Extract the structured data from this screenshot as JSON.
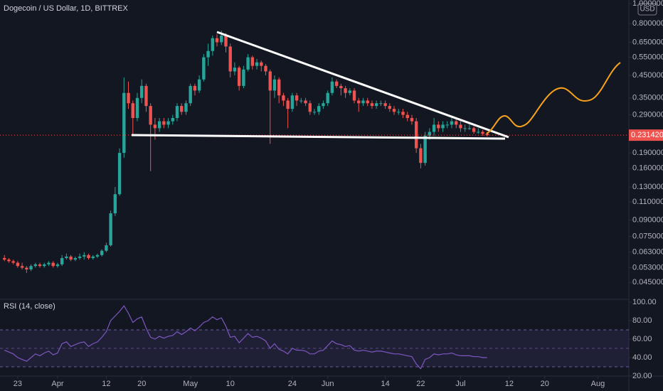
{
  "chart_data": [
    {
      "type": "candlestick",
      "title": "Dogecoin / US Dollar, 1D, BITTREX",
      "currency": "USD",
      "up_color": "#26a69a",
      "down_color": "#ef5350",
      "log_scale": true,
      "x": [
        "03-20",
        "03-21",
        "03-22",
        "03-23",
        "03-24",
        "03-25",
        "03-26",
        "03-27",
        "03-28",
        "03-29",
        "03-30",
        "03-31",
        "04-01",
        "04-02",
        "04-03",
        "04-04",
        "04-05",
        "04-06",
        "04-07",
        "04-08",
        "04-09",
        "04-10",
        "04-11",
        "04-12",
        "04-13",
        "04-14",
        "04-15",
        "04-16",
        "04-17",
        "04-18",
        "04-19",
        "04-20",
        "04-21",
        "04-22",
        "04-23",
        "04-24",
        "04-25",
        "04-26",
        "04-27",
        "04-28",
        "04-29",
        "04-30",
        "05-01",
        "05-02",
        "05-03",
        "05-04",
        "05-05",
        "05-06",
        "05-07",
        "05-08",
        "05-09",
        "05-10",
        "05-11",
        "05-12",
        "05-13",
        "05-14",
        "05-15",
        "05-16",
        "05-17",
        "05-18",
        "05-19",
        "05-20",
        "05-21",
        "05-22",
        "05-23",
        "05-24",
        "05-25",
        "05-26",
        "05-27",
        "05-28",
        "05-29",
        "05-30",
        "05-31",
        "06-01",
        "06-02",
        "06-03",
        "06-04",
        "06-05",
        "06-06",
        "06-07",
        "06-08",
        "06-09",
        "06-10",
        "06-11",
        "06-12",
        "06-13",
        "06-14",
        "06-15",
        "06-16",
        "06-17",
        "06-18",
        "06-19",
        "06-20",
        "06-21",
        "06-22",
        "06-23",
        "06-24",
        "06-25",
        "06-26",
        "06-27",
        "06-28",
        "06-29",
        "06-30",
        "07-01",
        "07-02",
        "07-03",
        "07-04",
        "07-05",
        "07-06",
        "07-07"
      ],
      "open": [
        0.059,
        0.058,
        0.057,
        0.056,
        0.054,
        0.053,
        0.052,
        0.054,
        0.055,
        0.054,
        0.055,
        0.056,
        0.054,
        0.055,
        0.059,
        0.06,
        0.058,
        0.059,
        0.06,
        0.061,
        0.059,
        0.06,
        0.061,
        0.064,
        0.068,
        0.097,
        0.12,
        0.19,
        0.37,
        0.33,
        0.28,
        0.35,
        0.4,
        0.32,
        0.26,
        0.25,
        0.27,
        0.26,
        0.27,
        0.28,
        0.32,
        0.3,
        0.33,
        0.4,
        0.38,
        0.43,
        0.55,
        0.59,
        0.68,
        0.65,
        0.7,
        0.62,
        0.47,
        0.49,
        0.4,
        0.48,
        0.55,
        0.5,
        0.52,
        0.5,
        0.47,
        0.38,
        0.43,
        0.36,
        0.34,
        0.31,
        0.36,
        0.34,
        0.34,
        0.33,
        0.3,
        0.3,
        0.32,
        0.33,
        0.37,
        0.42,
        0.4,
        0.39,
        0.37,
        0.38,
        0.34,
        0.33,
        0.34,
        0.33,
        0.32,
        0.33,
        0.33,
        0.32,
        0.31,
        0.3,
        0.3,
        0.29,
        0.28,
        0.27,
        0.2,
        0.17,
        0.23,
        0.24,
        0.26,
        0.25,
        0.26,
        0.26,
        0.27,
        0.26,
        0.25,
        0.25,
        0.25,
        0.24,
        0.24,
        0.235
      ],
      "high": [
        0.061,
        0.059,
        0.058,
        0.057,
        0.056,
        0.054,
        0.055,
        0.056,
        0.056,
        0.056,
        0.057,
        0.057,
        0.056,
        0.061,
        0.062,
        0.061,
        0.06,
        0.062,
        0.063,
        0.062,
        0.061,
        0.062,
        0.065,
        0.07,
        0.1,
        0.13,
        0.2,
        0.44,
        0.42,
        0.34,
        0.37,
        0.43,
        0.41,
        0.33,
        0.28,
        0.28,
        0.28,
        0.28,
        0.29,
        0.33,
        0.33,
        0.34,
        0.41,
        0.41,
        0.45,
        0.57,
        0.64,
        0.7,
        0.71,
        0.74,
        0.72,
        0.64,
        0.52,
        0.5,
        0.5,
        0.57,
        0.56,
        0.54,
        0.53,
        0.51,
        0.48,
        0.45,
        0.44,
        0.37,
        0.35,
        0.37,
        0.37,
        0.35,
        0.35,
        0.34,
        0.31,
        0.33,
        0.34,
        0.38,
        0.44,
        0.43,
        0.41,
        0.4,
        0.39,
        0.39,
        0.35,
        0.35,
        0.35,
        0.34,
        0.34,
        0.34,
        0.34,
        0.33,
        0.32,
        0.31,
        0.31,
        0.3,
        0.29,
        0.28,
        0.21,
        0.24,
        0.25,
        0.28,
        0.27,
        0.27,
        0.27,
        0.28,
        0.28,
        0.27,
        0.26,
        0.26,
        0.255,
        0.25,
        0.245,
        0.24
      ],
      "low": [
        0.057,
        0.056,
        0.055,
        0.053,
        0.052,
        0.05,
        0.051,
        0.053,
        0.053,
        0.053,
        0.054,
        0.053,
        0.053,
        0.054,
        0.058,
        0.057,
        0.057,
        0.058,
        0.058,
        0.058,
        0.058,
        0.059,
        0.06,
        0.063,
        0.067,
        0.094,
        0.118,
        0.18,
        0.31,
        0.23,
        0.27,
        0.33,
        0.3,
        0.155,
        0.22,
        0.24,
        0.25,
        0.25,
        0.26,
        0.27,
        0.29,
        0.29,
        0.32,
        0.36,
        0.37,
        0.42,
        0.5,
        0.56,
        0.62,
        0.63,
        0.58,
        0.44,
        0.45,
        0.38,
        0.39,
        0.47,
        0.48,
        0.48,
        0.47,
        0.45,
        0.21,
        0.35,
        0.33,
        0.32,
        0.25,
        0.3,
        0.32,
        0.33,
        0.32,
        0.29,
        0.29,
        0.29,
        0.31,
        0.32,
        0.36,
        0.39,
        0.36,
        0.35,
        0.36,
        0.33,
        0.3,
        0.32,
        0.32,
        0.31,
        0.31,
        0.32,
        0.31,
        0.3,
        0.29,
        0.29,
        0.28,
        0.27,
        0.26,
        0.19,
        0.16,
        0.165,
        0.22,
        0.23,
        0.24,
        0.24,
        0.25,
        0.25,
        0.25,
        0.24,
        0.24,
        0.245,
        0.235,
        0.235,
        0.23,
        0.228
      ],
      "close": [
        0.058,
        0.057,
        0.056,
        0.054,
        0.053,
        0.052,
        0.054,
        0.055,
        0.054,
        0.055,
        0.056,
        0.054,
        0.055,
        0.059,
        0.06,
        0.058,
        0.059,
        0.06,
        0.061,
        0.059,
        0.06,
        0.061,
        0.064,
        0.068,
        0.097,
        0.12,
        0.19,
        0.37,
        0.33,
        0.28,
        0.35,
        0.4,
        0.32,
        0.26,
        0.25,
        0.27,
        0.26,
        0.27,
        0.28,
        0.32,
        0.3,
        0.33,
        0.4,
        0.38,
        0.43,
        0.55,
        0.59,
        0.68,
        0.65,
        0.7,
        0.62,
        0.47,
        0.49,
        0.4,
        0.48,
        0.55,
        0.5,
        0.52,
        0.5,
        0.47,
        0.38,
        0.43,
        0.36,
        0.34,
        0.31,
        0.36,
        0.34,
        0.34,
        0.33,
        0.3,
        0.3,
        0.32,
        0.33,
        0.37,
        0.42,
        0.4,
        0.39,
        0.37,
        0.38,
        0.34,
        0.33,
        0.34,
        0.33,
        0.32,
        0.33,
        0.33,
        0.32,
        0.31,
        0.3,
        0.3,
        0.29,
        0.28,
        0.27,
        0.2,
        0.17,
        0.23,
        0.24,
        0.26,
        0.25,
        0.26,
        0.26,
        0.27,
        0.26,
        0.25,
        0.25,
        0.25,
        0.24,
        0.24,
        0.235,
        0.2314
      ],
      "last_price": {
        "value": 0.23142,
        "label": "0.23142000"
      },
      "xlim": [
        "03-19",
        "08-08"
      ],
      "xticks": [
        {
          "value": "03-23",
          "label": "23"
        },
        {
          "value": "04-01",
          "label": "Apr"
        },
        {
          "value": "04-12",
          "label": "12"
        },
        {
          "value": "04-20",
          "label": "20"
        },
        {
          "value": "05-01",
          "label": "May"
        },
        {
          "value": "05-10",
          "label": "10"
        },
        {
          "value": "05-24",
          "label": "24"
        },
        {
          "value": "06-01",
          "label": "Jun"
        },
        {
          "value": "06-14",
          "label": "14"
        },
        {
          "value": "06-22",
          "label": "22"
        },
        {
          "value": "07-01",
          "label": "Jul"
        },
        {
          "value": "07-12",
          "label": "12"
        },
        {
          "value": "07-20",
          "label": "20"
        },
        {
          "value": "08-01",
          "label": "Aug"
        }
      ],
      "ylim": [
        0.0376,
        1.04
      ],
      "yticks": [
        {
          "value": 1,
          "label": "1.00000000"
        },
        {
          "value": 0.8,
          "label": "0.80000000"
        },
        {
          "value": 0.65,
          "label": "0.65000000"
        },
        {
          "value": 0.55,
          "label": "0.55000000"
        },
        {
          "value": 0.45,
          "label": "0.45000000"
        },
        {
          "value": 0.35,
          "label": "0.35000000"
        },
        {
          "value": 0.29,
          "label": "0.29000000"
        },
        {
          "value": 0.19,
          "label": "0.19000000"
        },
        {
          "value": 0.16,
          "label": "0.16000000"
        },
        {
          "value": 0.13,
          "label": "0.13000000"
        },
        {
          "value": 0.11,
          "label": "0.11000000"
        },
        {
          "value": 0.09,
          "label": "0.09000000"
        },
        {
          "value": 0.075,
          "label": "0.07500000"
        },
        {
          "value": 0.063,
          "label": "0.06300000"
        },
        {
          "value": 0.053,
          "label": "0.05300000"
        },
        {
          "value": 0.045,
          "label": "0.04500000"
        }
      ]
    },
    {
      "type": "line",
      "title": "RSI (14, close)",
      "color": "#7e57c2",
      "values": [
        48,
        46,
        44,
        40,
        38,
        36,
        40,
        44,
        42,
        45,
        47,
        43,
        45,
        55,
        57,
        52,
        54,
        56,
        57,
        52,
        55,
        57,
        62,
        68,
        80,
        85,
        90,
        96,
        88,
        78,
        82,
        84,
        72,
        62,
        60,
        63,
        61,
        63,
        64,
        68,
        65,
        68,
        72,
        69,
        73,
        78,
        80,
        84,
        81,
        83,
        74,
        62,
        63,
        56,
        61,
        66,
        62,
        63,
        61,
        58,
        50,
        55,
        49,
        47,
        44,
        50,
        48,
        48,
        47,
        44,
        44,
        47,
        48,
        53,
        58,
        55,
        54,
        52,
        53,
        48,
        47,
        48,
        47,
        46,
        47,
        47,
        46,
        45,
        44,
        44,
        43,
        42,
        41,
        33,
        28,
        38,
        40,
        44,
        43,
        44,
        44,
        45,
        43,
        42,
        42,
        42,
        41,
        41,
        40,
        40
      ],
      "band": [
        30,
        70
      ],
      "midline": 50,
      "ylim": [
        20,
        100
      ],
      "yticks": [
        {
          "value": 100,
          "label": "100.00"
        },
        {
          "value": 80,
          "label": "80.00"
        },
        {
          "value": 60,
          "label": "60.00"
        },
        {
          "value": 40,
          "label": "40.00"
        },
        {
          "value": 20,
          "label": "20.00"
        }
      ]
    }
  ]
}
